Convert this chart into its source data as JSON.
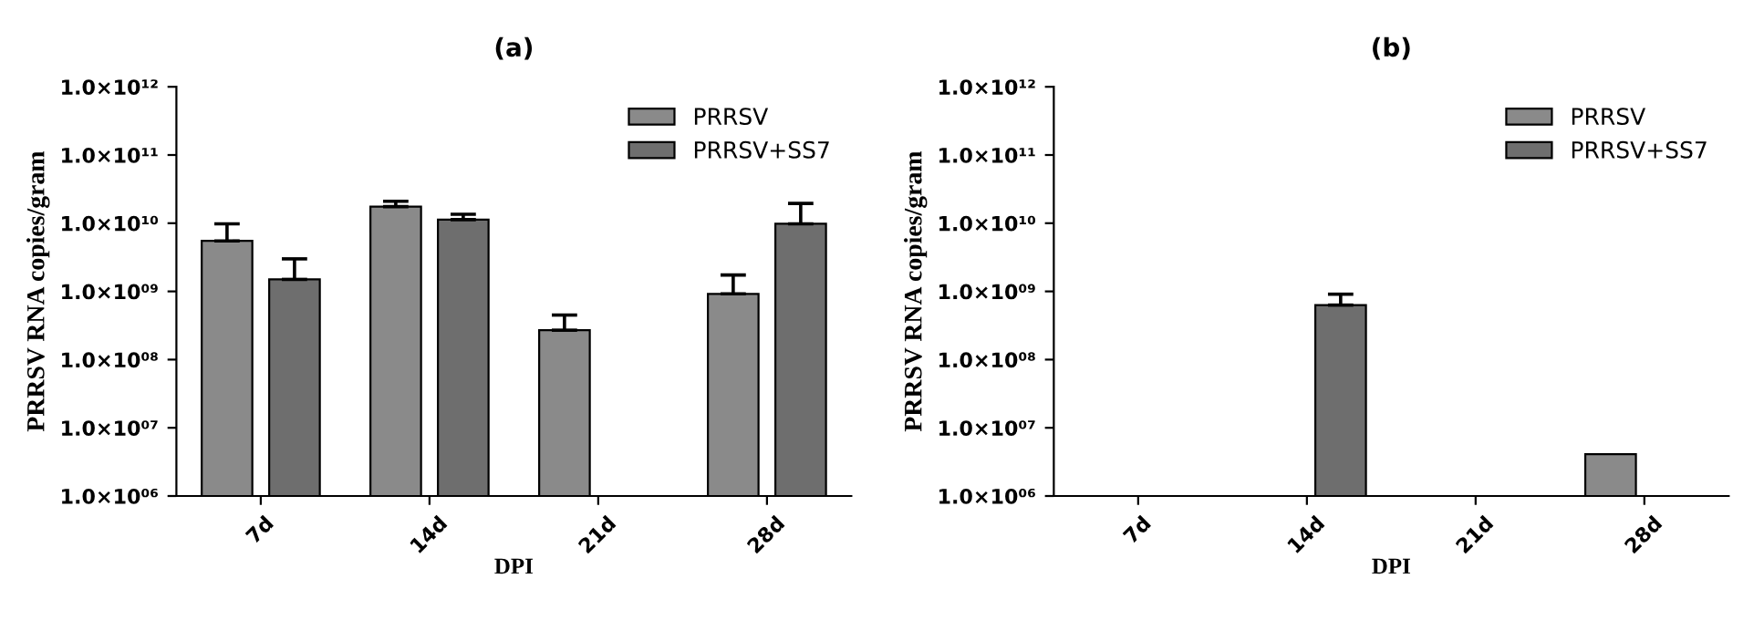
{
  "chart_data": [
    {
      "type": "bar",
      "title": "(a)",
      "xlabel": "DPI",
      "ylabel": "PRRSV RNA copies/gram",
      "categories": [
        "7d",
        "14d",
        "21d",
        "28d"
      ],
      "series": [
        {
          "name": "PRRSV",
          "color": "#8a8a8a",
          "values": [
            5500000000.0,
            17500000000.0,
            270000000.0,
            920000000.0
          ],
          "errors": [
            [
              5500000000.0,
              9800000000.0
            ],
            [
              17500000000.0,
              21000000000.0
            ],
            [
              270000000.0,
              450000000.0
            ],
            [
              920000000.0,
              1740000000.0
            ]
          ]
        },
        {
          "name": "PRRSV+SS7",
          "color": "#6e6e6e",
          "values": [
            1500000000.0,
            11300000000.0,
            null,
            9800000000.0
          ],
          "errors": [
            [
              1500000000.0,
              3000000000.0
            ],
            [
              11300000000.0,
              13500000000.0
            ],
            null,
            [
              9800000000.0,
              19500000000.0
            ]
          ]
        }
      ],
      "log": true,
      "ylim": [
        1000000.0,
        1000000000000.0
      ],
      "yticks": [
        {
          "value": 1000000.0,
          "label": "1.0×10⁰⁶"
        },
        {
          "value": 10000000.0,
          "label": "1.0×10⁰⁷"
        },
        {
          "value": 100000000.0,
          "label": "1.0×10⁰⁸"
        },
        {
          "value": 1000000000.0,
          "label": "1.0×10⁰⁹"
        },
        {
          "value": 10000000000.0,
          "label": "1.0×10¹⁰"
        },
        {
          "value": 100000000000.0,
          "label": "1.0×10¹¹"
        },
        {
          "value": 1000000000000.0,
          "label": "1.0×10¹²"
        }
      ],
      "grid": false,
      "legend": "top right"
    },
    {
      "type": "bar",
      "title": "(b)",
      "xlabel": "DPI",
      "ylabel": "PRRSV RNA copies/gram",
      "categories": [
        "7d",
        "14d",
        "21d",
        "28d"
      ],
      "series": [
        {
          "name": "PRRSV",
          "color": "#8a8a8a",
          "values": [
            null,
            null,
            null,
            4100000.0
          ]
        },
        {
          "name": "PRRSV+SS7",
          "color": "#6e6e6e",
          "values": [
            null,
            630000000.0,
            null,
            null
          ],
          "errors": [
            null,
            [
              630000000.0,
              910000000.0
            ],
            null,
            null
          ]
        }
      ],
      "log": true,
      "ylim": [
        1000000.0,
        1000000000000.0
      ],
      "yticks": [
        {
          "value": 1000000.0,
          "label": "1.0×10⁰⁶"
        },
        {
          "value": 10000000.0,
          "label": "1.0×10⁰⁷"
        },
        {
          "value": 100000000.0,
          "label": "1.0×10⁰⁸"
        },
        {
          "value": 1000000000.0,
          "label": "1.0×10⁰⁹"
        },
        {
          "value": 10000000000.0,
          "label": "1.0×10¹⁰"
        },
        {
          "value": 100000000000.0,
          "label": "1.0×10¹¹"
        },
        {
          "value": 1000000000000.0,
          "label": "1.0×10¹²"
        }
      ],
      "grid": false,
      "legend": "top right"
    }
  ]
}
